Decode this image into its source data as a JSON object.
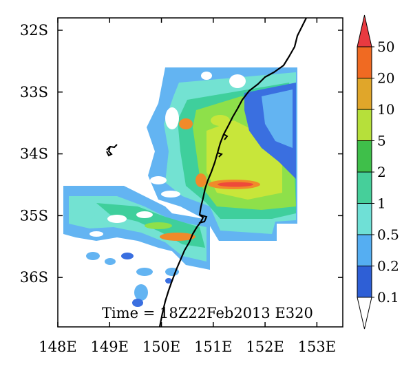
{
  "map": {
    "lat_ticks": [
      "32S",
      "33S",
      "34S",
      "35S",
      "36S"
    ],
    "lon_ticks": [
      "148E",
      "149E",
      "150E",
      "151E",
      "152E",
      "153E"
    ],
    "extent": {
      "lon_min": 148,
      "lon_max": 153.5,
      "lat_max": -31.8,
      "lat_min": -36.8
    },
    "time_label": "Time = 18Z22Feb2013 E320"
  },
  "colorbar": {
    "levels": [
      "0.1",
      "0.2",
      "0.5",
      "1",
      "2",
      "5",
      "10",
      "20",
      "50"
    ],
    "colors": [
      "#2e5fd6",
      "#55aef2",
      "#6fe0d6",
      "#46cf9a",
      "#3fbf4a",
      "#b6e03a",
      "#e0a62a",
      "#f06a22",
      "#e83a40"
    ],
    "low_end_color": "#ffffff"
  },
  "precip_colors": {
    "blue": "#3a6fe0",
    "light_blue": "#63b4f2",
    "cyan": "#73e2d2",
    "teal": "#3fcf9c",
    "green": "#8ee04a",
    "yellow_green": "#c8e63a",
    "orange": "#f08a2a",
    "red": "#ee4a3a"
  }
}
